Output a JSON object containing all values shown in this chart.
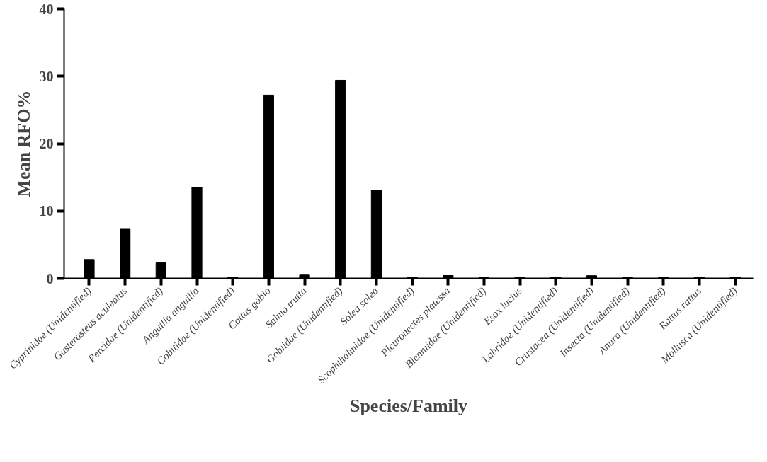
{
  "chart_data": {
    "type": "bar",
    "xlabel": "Species/Family",
    "ylabel": "Mean RFO%",
    "categories": [
      "Cyprinidae (Unidentified)",
      "Gasterosteus aculeatus",
      "Percidae (Unidentified)",
      "Anguilla anguilla",
      "Cobitidae (Unidentified)",
      "Cottus gobio",
      "Salmo trutta",
      "Gobiidae (Unidentified)",
      "Solea solea",
      "Scophthalmidae (Unidentified)",
      "Pleuronectes platessa",
      "Blenniidae (Unidentified)",
      "Esox lucius",
      "Labridae (Unidentified)",
      "Crustacea (Unidentified)",
      "Insecta (Unidentified)",
      "Anura (Unidentified)",
      "Rattus rattus",
      "Mollusca (Unidentified)"
    ],
    "values": [
      2.8,
      7.4,
      2.3,
      13.5,
      0.2,
      27.2,
      0.6,
      29.4,
      13.1,
      0.2,
      0.5,
      0.2,
      0.2,
      0.2,
      0.4,
      0.2,
      0.2,
      0.2,
      0.2
    ],
    "color": "#000000",
    "ylim": [
      0,
      40
    ],
    "yticks": [
      0,
      10,
      20,
      30,
      40
    ],
    "grid": false
  }
}
